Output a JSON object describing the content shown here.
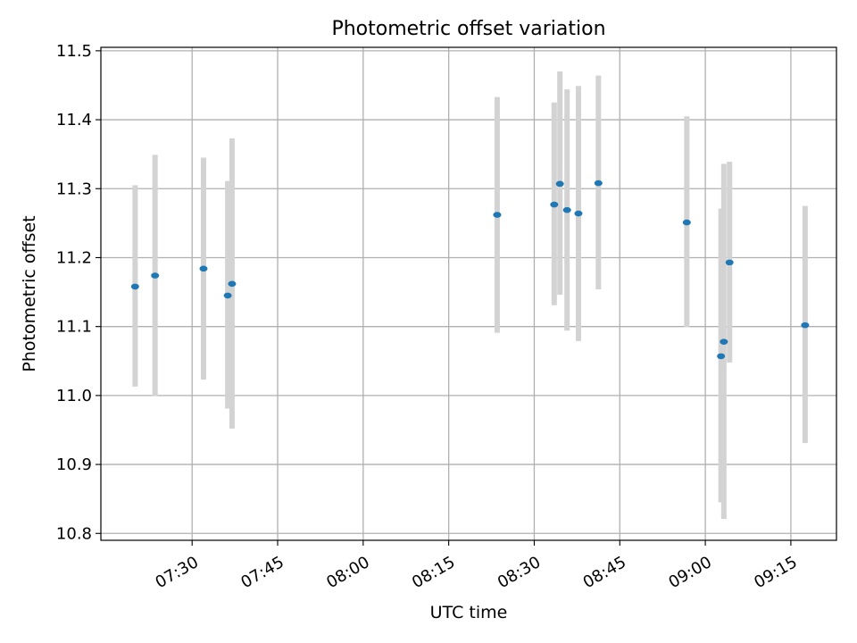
{
  "chart_data": {
    "type": "scatter",
    "title": "Photometric offset variation",
    "xlabel": "UTC time",
    "ylabel": "Photometric offset",
    "x_ticks": [
      "07:30",
      "07:45",
      "08:00",
      "08:15",
      "08:30",
      "08:45",
      "09:00",
      "09:15"
    ],
    "y_ticks": [
      "10.8",
      "10.9",
      "11.0",
      "11.1",
      "11.2",
      "11.3",
      "11.4",
      "11.5"
    ],
    "xlim": [
      "07:14:00",
      "09:23:00"
    ],
    "ylim": [
      10.79,
      11.505
    ],
    "grid": true,
    "legend": "none",
    "colors": {
      "point": "#1f77b4",
      "errorbar": "#d3d3d3",
      "grid": "#b0b0b0"
    },
    "points": [
      {
        "x": "07:20:00",
        "y": 11.158,
        "lo": 11.013,
        "hi": 11.305
      },
      {
        "x": "07:23:30",
        "y": 11.174,
        "lo": 10.999,
        "hi": 11.349
      },
      {
        "x": "07:32:00",
        "y": 11.184,
        "lo": 11.023,
        "hi": 11.345
      },
      {
        "x": "07:36:15",
        "y": 11.145,
        "lo": 10.981,
        "hi": 11.311
      },
      {
        "x": "07:37:00",
        "y": 11.162,
        "lo": 10.952,
        "hi": 11.373
      },
      {
        "x": "08:23:30",
        "y": 11.262,
        "lo": 11.091,
        "hi": 11.433
      },
      {
        "x": "08:33:30",
        "y": 11.277,
        "lo": 11.131,
        "hi": 11.425
      },
      {
        "x": "08:34:30",
        "y": 11.307,
        "lo": 11.146,
        "hi": 11.47
      },
      {
        "x": "08:35:45",
        "y": 11.269,
        "lo": 11.094,
        "hi": 11.444
      },
      {
        "x": "08:37:45",
        "y": 11.264,
        "lo": 11.079,
        "hi": 11.449
      },
      {
        "x": "08:41:15",
        "y": 11.308,
        "lo": 11.154,
        "hi": 11.464
      },
      {
        "x": "08:56:45",
        "y": 11.251,
        "lo": 11.099,
        "hi": 11.405
      },
      {
        "x": "09:02:45",
        "y": 11.057,
        "lo": 10.845,
        "hi": 11.271
      },
      {
        "x": "09:03:15",
        "y": 11.078,
        "lo": 10.821,
        "hi": 11.336
      },
      {
        "x": "09:04:15",
        "y": 11.193,
        "lo": 11.048,
        "hi": 11.339
      },
      {
        "x": "09:17:30",
        "y": 11.102,
        "lo": 10.931,
        "hi": 11.275
      }
    ]
  }
}
